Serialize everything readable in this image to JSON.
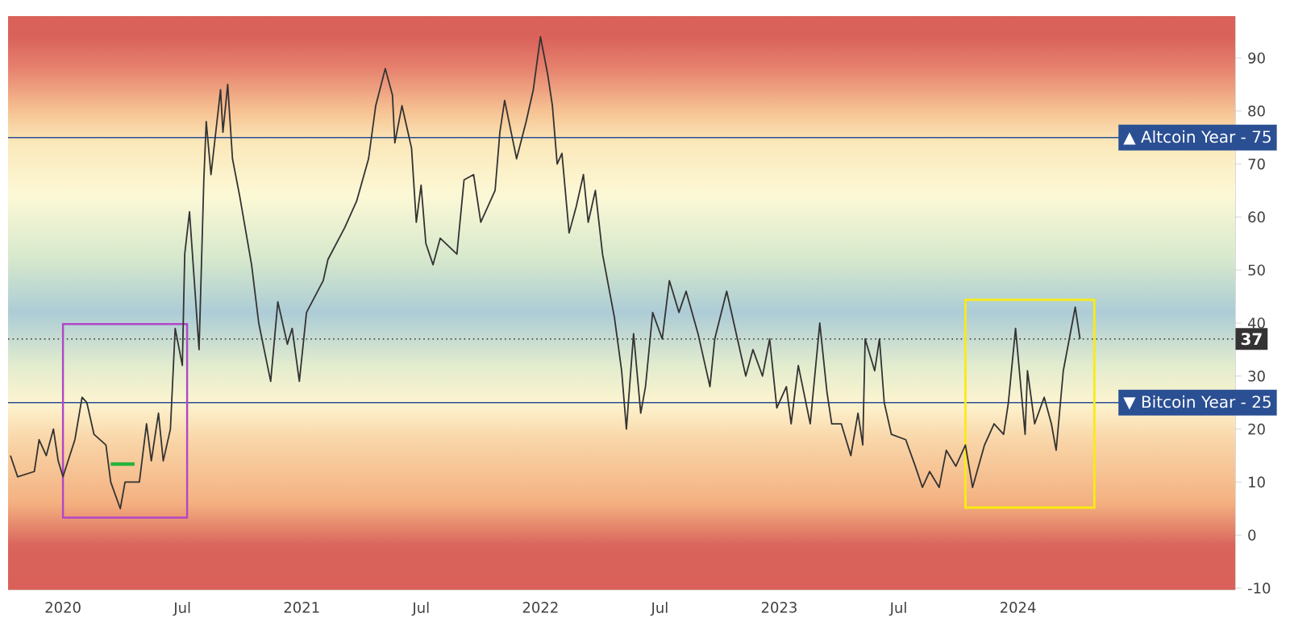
{
  "chart_data": {
    "type": "line",
    "x": [
      2019.78,
      2019.81,
      2019.88,
      2019.9,
      2019.93,
      2019.96,
      2019.98,
      2020.0,
      2020.05,
      2020.08,
      2020.1,
      2020.13,
      2020.18,
      2020.2,
      2020.24,
      2020.26,
      2020.32,
      2020.35,
      2020.37,
      2020.4,
      2020.42,
      2020.45,
      2020.47,
      2020.5,
      2020.51,
      2020.53,
      2020.57,
      2020.59,
      2020.6,
      2020.62,
      2020.66,
      2020.67,
      2020.69,
      2020.71,
      2020.74,
      2020.79,
      2020.82,
      2020.87,
      2020.9,
      2020.94,
      2020.96,
      2020.99,
      2021.02,
      2021.09,
      2021.11,
      2021.18,
      2021.23,
      2021.28,
      2021.31,
      2021.35,
      2021.38,
      2021.39,
      2021.42,
      2021.46,
      2021.48,
      2021.5,
      2021.52,
      2021.55,
      2021.58,
      2021.65,
      2021.68,
      2021.72,
      2021.75,
      2021.81,
      2021.83,
      2021.85,
      2021.9,
      2021.94,
      2021.97,
      2022.0,
      2022.03,
      2022.05,
      2022.07,
      2022.09,
      2022.12,
      2022.15,
      2022.18,
      2022.2,
      2022.23,
      2022.26,
      2022.31,
      2022.34,
      2022.36,
      2022.39,
      2022.42,
      2022.44,
      2022.47,
      2022.51,
      2022.54,
      2022.58,
      2022.61,
      2022.66,
      2022.69,
      2022.71,
      2022.73,
      2022.78,
      2022.83,
      2022.86,
      2022.89,
      2022.93,
      2022.96,
      2022.99,
      2023.03,
      2023.05,
      2023.08,
      2023.13,
      2023.17,
      2023.2,
      2023.22,
      2023.26,
      2023.3,
      2023.33,
      2023.35,
      2023.36,
      2023.4,
      2023.42,
      2023.44,
      2023.47,
      2023.53,
      2023.57,
      2023.6,
      2023.63,
      2023.67,
      2023.7,
      2023.74,
      2023.78,
      2023.81,
      2023.86,
      2023.9,
      2023.94,
      2023.96,
      2023.99,
      2024.03,
      2024.04,
      2024.07,
      2024.11,
      2024.14,
      2024.16,
      2024.19,
      2024.24,
      2024.26
    ],
    "series": [
      {
        "color": "#333333",
        "values": [
          15,
          11,
          12,
          18,
          15,
          20,
          14,
          11,
          18,
          26,
          25,
          19,
          17,
          10,
          5,
          10,
          10,
          21,
          14,
          23,
          14,
          20,
          39,
          32,
          53,
          61,
          35,
          67,
          78,
          68,
          84,
          76,
          85,
          71,
          64,
          51,
          40,
          29,
          44,
          36,
          39,
          29,
          42,
          48,
          52,
          58,
          63,
          71,
          81,
          88,
          83,
          74,
          81,
          73,
          59,
          66,
          55,
          51,
          56,
          53,
          67,
          68,
          59,
          65,
          76,
          82,
          71,
          78,
          84,
          94,
          87,
          81,
          70,
          72,
          57,
          62,
          68,
          59,
          65,
          53,
          41,
          31,
          20,
          38,
          23,
          28,
          42,
          37,
          48,
          42,
          46,
          38,
          32,
          28,
          37,
          46,
          36,
          30,
          35,
          30,
          37,
          24,
          28,
          21,
          32,
          21,
          40,
          27,
          21,
          21,
          15,
          23,
          17,
          37,
          31,
          37,
          25,
          19,
          18,
          13,
          9,
          12,
          9,
          16,
          13,
          17,
          9,
          17,
          21,
          19,
          25,
          39,
          19,
          31,
          21,
          26,
          21,
          16,
          31,
          43,
          37
        ]
      }
    ],
    "xlim": [
      2019.77,
      2024.91
    ],
    "ylim": [
      -10.3,
      97.9
    ],
    "xticks": [
      {
        "value": 2020,
        "label": "2020"
      },
      {
        "value": 2020.5,
        "label": "Jul"
      },
      {
        "value": 2021,
        "label": "2021"
      },
      {
        "value": 2021.5,
        "label": "Jul"
      },
      {
        "value": 2022,
        "label": "2022"
      },
      {
        "value": 2022.5,
        "label": "Jul"
      },
      {
        "value": 2023,
        "label": "2023"
      },
      {
        "value": 2023.5,
        "label": "Jul"
      },
      {
        "value": 2024,
        "label": "2024"
      }
    ],
    "yticks": [
      -10,
      0,
      10,
      20,
      30,
      40,
      50,
      60,
      70,
      80,
      90
    ],
    "ref_lines": [
      {
        "axis": "y",
        "value": 75,
        "label": "▲ Altcoin Year - 75",
        "color": "#2b4f93"
      },
      {
        "axis": "y",
        "value": 25,
        "label": "▼ Bitcoin Year - 25",
        "color": "#2b4f93"
      },
      {
        "axis": "y",
        "value": 37,
        "label": "37",
        "color": "#333333",
        "line_style": "dotted"
      }
    ]
  }
}
